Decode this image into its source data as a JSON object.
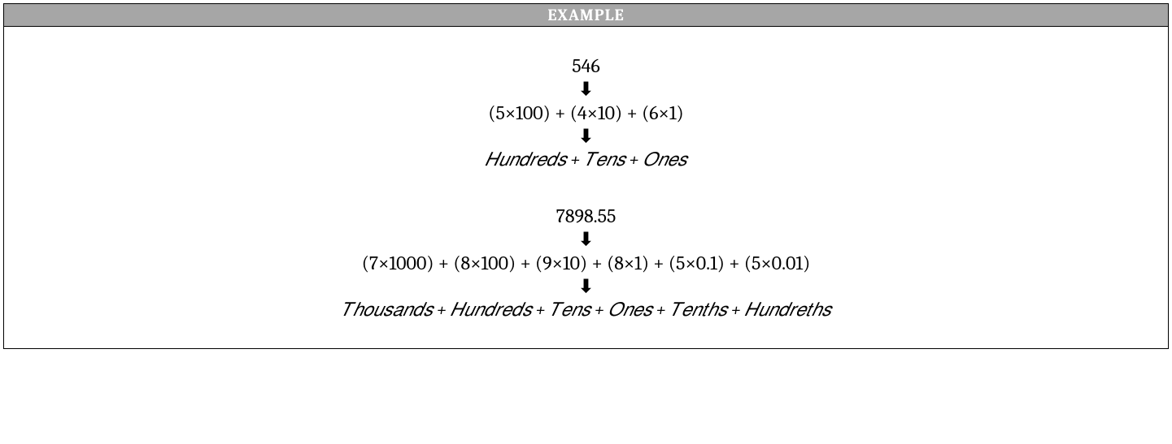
{
  "header": {
    "title": "EXAMPLE",
    "background_color": "#a6a6a6",
    "text_color": "#ffffff"
  },
  "box": {
    "border_color": "#000000",
    "background_color": "#ffffff"
  },
  "example1": {
    "number": "546",
    "expanded": "(5×100) + (4×10) + (6×1)",
    "places": "𝐻𝑢𝑛𝑑𝑟𝑒𝑑𝑠 + 𝑇𝑒𝑛𝑠 + 𝑂𝑛𝑒𝑠"
  },
  "example2": {
    "number": "7898.55",
    "expanded": "(7×1000) + (8×100) + (9×10) + (8×1) + (5×0.1) + (5×0.01)",
    "places": "𝑇ℎ𝑜𝑢𝑠𝑎𝑛𝑑𝑠 + 𝐻𝑢𝑛𝑑𝑟𝑒𝑑𝑠 + 𝑇𝑒𝑛𝑠 + 𝑂𝑛𝑒𝑠 + 𝑇𝑒𝑛𝑡ℎ𝑠 + 𝐻𝑢𝑛𝑑𝑟𝑒𝑡ℎ𝑠"
  },
  "arrow_glyph": "⬇"
}
